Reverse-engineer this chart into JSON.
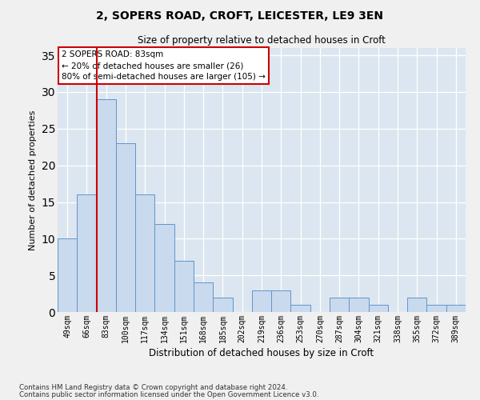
{
  "title1": "2, SOPERS ROAD, CROFT, LEICESTER, LE9 3EN",
  "title2": "Size of property relative to detached houses in Croft",
  "xlabel": "Distribution of detached houses by size in Croft",
  "ylabel": "Number of detached properties",
  "categories": [
    "49sqm",
    "66sqm",
    "83sqm",
    "100sqm",
    "117sqm",
    "134sqm",
    "151sqm",
    "168sqm",
    "185sqm",
    "202sqm",
    "219sqm",
    "236sqm",
    "253sqm",
    "270sqm",
    "287sqm",
    "304sqm",
    "321sqm",
    "338sqm",
    "355sqm",
    "372sqm",
    "389sqm"
  ],
  "values": [
    10,
    16,
    29,
    23,
    16,
    12,
    7,
    4,
    2,
    0,
    3,
    3,
    1,
    0,
    2,
    2,
    1,
    0,
    2,
    1,
    1
  ],
  "bar_color": "#c9d9ee",
  "bar_edge_color": "#6096c8",
  "vline_color": "#cc0000",
  "vline_index": 2,
  "ylim": [
    0,
    36
  ],
  "yticks": [
    0,
    5,
    10,
    15,
    20,
    25,
    30,
    35
  ],
  "annotation_title": "2 SOPERS ROAD: 83sqm",
  "annotation_line1": "← 20% of detached houses are smaller (26)",
  "annotation_line2": "80% of semi-detached houses are larger (105) →",
  "annotation_box_facecolor": "#ffffff",
  "annotation_box_edgecolor": "#cc0000",
  "bg_color": "#dce6f0",
  "grid_color": "#ffffff",
  "fig_bg_color": "#f0f0f0",
  "footer1": "Contains HM Land Registry data © Crown copyright and database right 2024.",
  "footer2": "Contains public sector information licensed under the Open Government Licence v3.0."
}
